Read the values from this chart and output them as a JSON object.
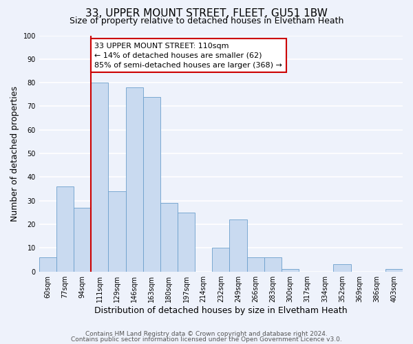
{
  "title": "33, UPPER MOUNT STREET, FLEET, GU51 1BW",
  "subtitle": "Size of property relative to detached houses in Elvetham Heath",
  "xlabel": "Distribution of detached houses by size in Elvetham Heath",
  "ylabel": "Number of detached properties",
  "bar_labels": [
    "60sqm",
    "77sqm",
    "94sqm",
    "111sqm",
    "129sqm",
    "146sqm",
    "163sqm",
    "180sqm",
    "197sqm",
    "214sqm",
    "232sqm",
    "249sqm",
    "266sqm",
    "283sqm",
    "300sqm",
    "317sqm",
    "334sqm",
    "352sqm",
    "369sqm",
    "386sqm",
    "403sqm"
  ],
  "bar_values": [
    6,
    36,
    27,
    80,
    34,
    78,
    74,
    29,
    25,
    0,
    10,
    22,
    6,
    6,
    1,
    0,
    0,
    3,
    0,
    0,
    1
  ],
  "bar_color": "#c9daf0",
  "bar_edge_color": "#6b9fcc",
  "ylim": [
    0,
    100
  ],
  "yticks": [
    0,
    10,
    20,
    30,
    40,
    50,
    60,
    70,
    80,
    90,
    100
  ],
  "vline_index": 3,
  "vline_color": "#cc0000",
  "annotation_text": "33 UPPER MOUNT STREET: 110sqm\n← 14% of detached houses are smaller (62)\n85% of semi-detached houses are larger (368) →",
  "annotation_box_color": "#ffffff",
  "annotation_box_edge": "#cc0000",
  "footer_line1": "Contains HM Land Registry data © Crown copyright and database right 2024.",
  "footer_line2": "Contains public sector information licensed under the Open Government Licence v3.0.",
  "bg_color": "#eef2fb",
  "plot_bg_color": "#eef2fb",
  "title_fontsize": 11,
  "subtitle_fontsize": 9,
  "axis_label_fontsize": 9,
  "tick_fontsize": 7,
  "annotation_fontsize": 8,
  "footer_fontsize": 6.5
}
